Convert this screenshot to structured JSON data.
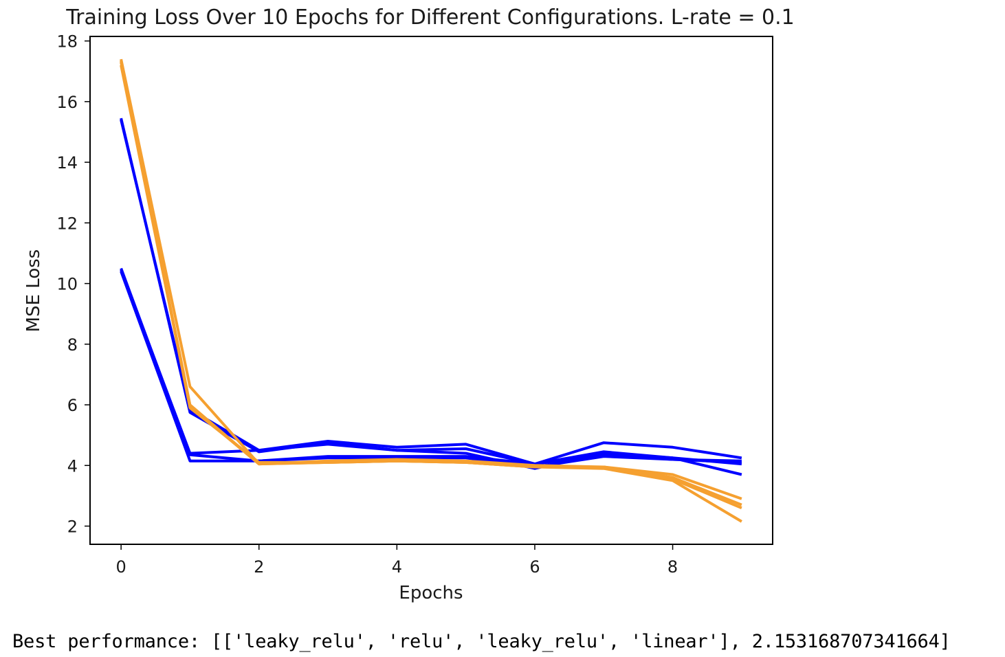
{
  "chart_data": {
    "type": "line",
    "title": "Training Loss Over 10 Epochs for Different Configurations. L-rate = 0.1",
    "xlabel": "Epochs",
    "ylabel": "MSE Loss",
    "xlim": [
      -0.45,
      9.45
    ],
    "ylim": [
      1.4,
      18.15
    ],
    "x_ticks": [
      0,
      2,
      4,
      6,
      8
    ],
    "y_ticks": [
      2,
      4,
      6,
      8,
      10,
      12,
      14,
      16,
      18
    ],
    "grid": false,
    "legend": "none",
    "x": [
      0,
      1,
      2,
      3,
      4,
      5,
      6,
      7,
      8,
      9
    ],
    "series": [
      {
        "color": "#0000ff",
        "values": [
          15.45,
          5.75,
          4.45,
          4.75,
          4.5,
          4.55,
          4.05,
          4.75,
          4.6,
          4.25
        ]
      },
      {
        "color": "#0000ff",
        "values": [
          15.4,
          5.85,
          4.5,
          4.8,
          4.6,
          4.7,
          4.05,
          4.45,
          4.25,
          3.7
        ]
      },
      {
        "color": "#0000ff",
        "values": [
          10.45,
          4.4,
          4.5,
          4.7,
          4.5,
          4.4,
          3.9,
          4.4,
          4.25,
          4.05
        ]
      },
      {
        "color": "#0000ff",
        "values": [
          10.4,
          4.15,
          4.15,
          4.3,
          4.3,
          4.3,
          4.05,
          4.35,
          4.2,
          4.1
        ]
      },
      {
        "color": "#0000ff",
        "values": [
          10.5,
          4.35,
          4.15,
          4.25,
          4.25,
          4.25,
          3.95,
          4.3,
          4.2,
          4.15
        ]
      },
      {
        "color": "#f5a030",
        "values": [
          17.4,
          6.6,
          4.05,
          4.1,
          4.15,
          4.1,
          3.95,
          3.95,
          3.7,
          2.9
        ]
      },
      {
        "color": "#f5a030",
        "values": [
          17.3,
          6.0,
          4.05,
          4.15,
          4.2,
          4.15,
          4.0,
          3.95,
          3.6,
          2.7
        ]
      },
      {
        "color": "#f5a030",
        "values": [
          17.35,
          5.9,
          4.1,
          4.1,
          4.15,
          4.1,
          3.95,
          3.9,
          3.5,
          2.15
        ]
      },
      {
        "color": "#f5a030",
        "values": [
          17.2,
          5.95,
          4.05,
          4.1,
          4.15,
          4.1,
          3.95,
          3.95,
          3.55,
          2.6
        ]
      }
    ]
  },
  "output": {
    "text": "Best performance: [['leaky_relu', 'relu', 'leaky_relu', 'linear'], 2.153168707341664]"
  }
}
